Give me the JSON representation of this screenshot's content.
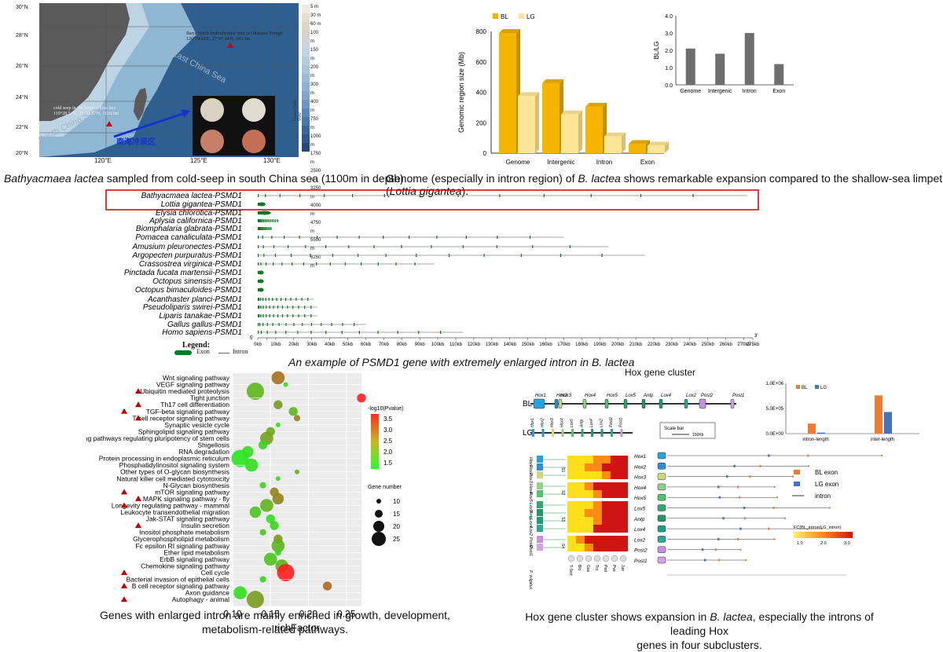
{
  "map": {
    "lat_labels": [
      "30°N",
      "28°N",
      "26°N",
      "24°N",
      "22°N",
      "20°N"
    ],
    "lon_labels": [
      "120°E",
      "125°E",
      "130°E"
    ],
    "depth_scale": [
      "5 m",
      "30 m",
      "60 m",
      "100 m",
      "150 m",
      "200 m",
      "300 m",
      "400 m",
      "750 m",
      "1000 m",
      "1750 m",
      "2500 m",
      "3250 m",
      "4000 m",
      "4750 m",
      "5500 m",
      "6250 m"
    ],
    "sea_labels": [
      "East China Sea",
      "South China Sea"
    ],
    "vent_label": "Iheya North hydrothermal vent in Okinawa Trough",
    "vent_coords": "126°58.82'E, 27°47.44'N, 993.5m",
    "seep_label": "cold seep in the South China Sea",
    "seep_coords": "119°28.54'E, 22°11.57'N, 1118.9m",
    "cn_label": "南海冷泉区",
    "source": "Ocean Data View",
    "caption_species": "Bathyacmaea lactea",
    "caption_rest": " sampled from cold-seep in south China sea (1100m in depth)"
  },
  "genome_fig": {
    "caption_a": "Genome (especially in intron region) of ",
    "caption_species": "B. lactea",
    "caption_b": " shows remarkable expansion compared to the shallow-sea limpet (",
    "caption_species2": "Lottia gigantea",
    "caption_c": ")."
  },
  "psmd1": {
    "genes": [
      "Bathyacmaea lactea-PSMD1",
      "Lottia gigantea-PSMD1",
      "Elysia chlorotica-PSMD1",
      "Aplysia californica-PSMD1",
      "Biomphalaria glabrata-PSMD1",
      "Pomacea canaliculata-PSMD1",
      "Amusium pleuronectes-PSMD1",
      "Argopecten purpuratus-PSMD1",
      "Crassostrea virginica-PSMD1",
      "Pinctada fucata martensii-PSMD1",
      "Octopus sinensis-PSMD1",
      "Octopus bimaculoides-PSMD1",
      "Acanthaster planci-PSMD1",
      "Pseudoliparis swirei-PSMD1",
      "Liparis tanakae-PSMD1",
      "Gallus gallus-PSMD1",
      "Homo sapiens-PSMD1"
    ],
    "lengths_kb": [
      272,
      3,
      6,
      12,
      8,
      170,
      195,
      215,
      98,
      2,
      2,
      2,
      31,
      33,
      33,
      60,
      114
    ],
    "axis_ticks": [
      "0kb",
      "5kb",
      "10kb",
      "20kb",
      "30kb",
      "40kb",
      "50kb",
      "60kb",
      "70kb",
      "80kb",
      "90kb",
      "100kb",
      "110kb",
      "120kb",
      "130kb",
      "140kb",
      "150kb",
      "160kb",
      "170kb",
      "180kb",
      "190kb",
      "200kb",
      "210kb",
      "220kb",
      "230kb",
      "240kb",
      "250kb",
      "260kb",
      "270kb",
      "275kb"
    ],
    "end_5": "5'",
    "end_3": "3'",
    "legend_title": "Legend:",
    "legend_exon": "Exon",
    "legend_intron": "Intron",
    "caption_a": "An example of PSMD1 gene with extremely enlarged intron in ",
    "caption_species": "B. lactea"
  },
  "kegg": {
    "caption_line1": "Genes with enlarged intron are mainly enriched in growth, development,",
    "caption_line2": "metabolism-related pathways."
  },
  "hox": {
    "title": "Hox gene cluster",
    "bl_label": "BL",
    "lg_label": "LG",
    "bl_genes": [
      "Hox1",
      "Hox2",
      "Hox3",
      "Hox4",
      "Hox5",
      "Lox5",
      "Antp",
      "Lox4",
      "Lox2",
      "Post2",
      "Post1"
    ],
    "lg_genes": [
      "Hox1",
      "Hox2",
      "Hox3",
      "Hox4",
      "Lox5",
      "Antp",
      "Lox4",
      "Lox2",
      "Post2",
      "Post1"
    ],
    "scale_label": "Scale bar",
    "scale_value": "100Kb",
    "sub_labels": [
      "S1",
      "S2",
      "S3",
      "S4"
    ],
    "heat_left_labels": [
      "Hox1",
      "Hox2",
      "Hox3",
      "Hox4",
      "Hox5",
      "Lox5",
      "Antp",
      "Lox4",
      "Lox2",
      "Post2",
      "Post1"
    ],
    "heat_bottom_labels": [
      "T-Sort",
      "Blo",
      "Gas",
      "Tro",
      "Ped",
      "Pve",
      "Juv"
    ],
    "outgroup_label": "P. vulgatus",
    "legend_bl": "BL exon",
    "legend_lg": "LG exon",
    "legend_intron": "intron",
    "fc_label": "FC(BL_intron/LG_intron)",
    "fc_ticks": [
      "1.0",
      "2.0",
      "3.0"
    ],
    "caption_line1a": "Hox gene cluster shows expansion in ",
    "caption_species": "B. lactea",
    "caption_line1b": ", especially the introns of leading Hox",
    "caption_line2": "genes in four subclusters."
  },
  "chart_data": [
    {
      "type": "bar",
      "id": "genome-size",
      "categories": [
        "Genome",
        "Intergenic",
        "Intron",
        "Exon"
      ],
      "series": [
        {
          "name": "BL",
          "values": [
            790,
            460,
            305,
            60
          ],
          "color": "#f5b400"
        },
        {
          "name": "LG",
          "values": [
            375,
            255,
            110,
            50
          ],
          "color": "#fde597"
        }
      ],
      "ylabel": "Genomic region size (Mb)",
      "ylim": [
        0,
        800
      ],
      "yticks": [
        "0",
        "200",
        "400",
        "600",
        "800"
      ]
    },
    {
      "type": "bar",
      "id": "ratio",
      "categories": [
        "Genome",
        "Intergenic",
        "Intron",
        "Exon"
      ],
      "values": [
        2.1,
        1.8,
        3.0,
        1.2
      ],
      "ylabel": "BL/LG",
      "ylim": [
        0,
        4.0
      ],
      "yticks": [
        "0.0",
        "1.0",
        "2.0",
        "3.0",
        "4.0"
      ],
      "color": "#6e6e6e"
    },
    {
      "type": "scatter",
      "id": "kegg-enrichment",
      "pathways": [
        "Wnt signaling pathway",
        "VEGF signaling pathway",
        "Ubiquitin mediated proteolysis",
        "Tight junction",
        "Th17 cell differentiation",
        "TGF-beta signaling pathway",
        "T cell receptor signaling pathway",
        "Synaptic vesicle cycle",
        "Sphingolipid signaling pathway",
        "Signaling pathways regulating pluripotency of stem cells",
        "Shigellosis",
        "RNA degradation",
        "Protein processing in endoplasmic reticulum",
        "Phosphatidylinositol signaling system",
        "Other types of O-glycan biosynthesis",
        "Natural killer cell mediated cytotoxicity",
        "N-Glycan biosynthesis",
        "mTOR signaling pathway",
        "MAPK signaling pathway - fly",
        "Longevity regulating pathway - mammal",
        "Leukocyte transendothelial migration",
        "Jak-STAT signaling pathway",
        "Insulin secretion",
        "Inositol phosphate metabolism",
        "Glycerophospholipid metabolism",
        "Fc epsilon RI signaling pathway",
        "Ether lipid metabolism",
        "ErbB signaling pathway",
        "Chemokine signaling pathway",
        "Cell cycle",
        "Bacterial invasion of epithelial cells",
        "B cell receptor signaling pathway",
        "Axon guidance",
        "Autophagy - animal"
      ],
      "marked": [
        2,
        4,
        5,
        6,
        17,
        18,
        19,
        22,
        29,
        31,
        33
      ],
      "richFactor": [
        0.16,
        0.17,
        0.13,
        0.27,
        0.16,
        0.18,
        0.185,
        0.16,
        0.15,
        0.145,
        0.14,
        0.12,
        0.11,
        0.125,
        0.185,
        0.16,
        0.14,
        0.155,
        0.16,
        0.145,
        0.13,
        0.15,
        0.155,
        0.14,
        0.16,
        0.16,
        0.16,
        0.15,
        0.165,
        0.17,
        0.14,
        0.225,
        0.11,
        0.13
      ],
      "gene_number": [
        20,
        10,
        25,
        15,
        15,
        15,
        12,
        10,
        15,
        20,
        15,
        18,
        25,
        20,
        10,
        10,
        12,
        15,
        18,
        20,
        18,
        15,
        15,
        12,
        15,
        20,
        12,
        20,
        20,
        25,
        12,
        15,
        20,
        25
      ],
      "neg_log10_pvalue": [
        2.8,
        1.5,
        2.0,
        3.8,
        2.3,
        2.0,
        2.6,
        1.5,
        2.1,
        2.2,
        1.6,
        1.5,
        1.4,
        1.5,
        2.0,
        1.5,
        1.6,
        2.6,
        2.6,
        2.0,
        1.8,
        1.5,
        1.6,
        1.8,
        2.3,
        2.0,
        1.6,
        1.8,
        2.0,
        3.8,
        1.6,
        2.9,
        1.5,
        2.3
      ],
      "xlabel": "richFactor",
      "xlim": [
        0.1,
        0.27
      ],
      "xticks": [
        "0.10",
        "0.15",
        "0.20",
        "0.25"
      ],
      "color_legend_title": "-log10(Pvalue)",
      "color_ticks": [
        "3.5",
        "3.0",
        "2.5",
        "2.0",
        "1.5"
      ],
      "size_legend_title": "Gene number",
      "size_ticks": [
        "10",
        "15",
        "20",
        "25"
      ]
    },
    {
      "type": "bar",
      "id": "hox-intron-length",
      "categories": [
        "intron-length",
        "inter-length"
      ],
      "series": [
        {
          "name": "BL",
          "values": [
            200000,
            760000
          ],
          "color": "#ed7d31"
        },
        {
          "name": "LG",
          "values": [
            20000,
            430000
          ],
          "color": "#4472c4"
        }
      ],
      "ylim": [
        0,
        1000000
      ],
      "yticks": [
        "0.0E+00",
        "5.0E+05",
        "1.0E+06"
      ]
    },
    {
      "type": "heatmap",
      "id": "hox-expression",
      "rows": 11,
      "cols": 7,
      "values": [
        [
          1,
          1,
          1,
          2,
          2,
          3,
          3
        ],
        [
          1,
          1,
          2,
          2,
          3,
          3,
          3
        ],
        [
          1,
          1,
          1,
          1,
          2,
          3,
          3
        ],
        [
          1,
          1,
          2,
          3,
          3,
          3,
          3
        ],
        [
          1,
          1,
          1,
          2,
          3,
          3,
          3
        ],
        [
          1,
          1,
          1,
          2,
          3,
          3,
          3
        ],
        [
          1,
          1,
          2,
          2,
          3,
          3,
          3
        ],
        [
          1,
          1,
          1,
          2,
          3,
          3,
          3
        ],
        [
          1,
          1,
          1,
          3,
          3,
          3,
          3
        ],
        [
          1,
          2,
          3,
          3,
          3,
          3,
          3
        ],
        [
          1,
          1,
          2,
          3,
          3,
          3,
          3
        ]
      ]
    }
  ]
}
